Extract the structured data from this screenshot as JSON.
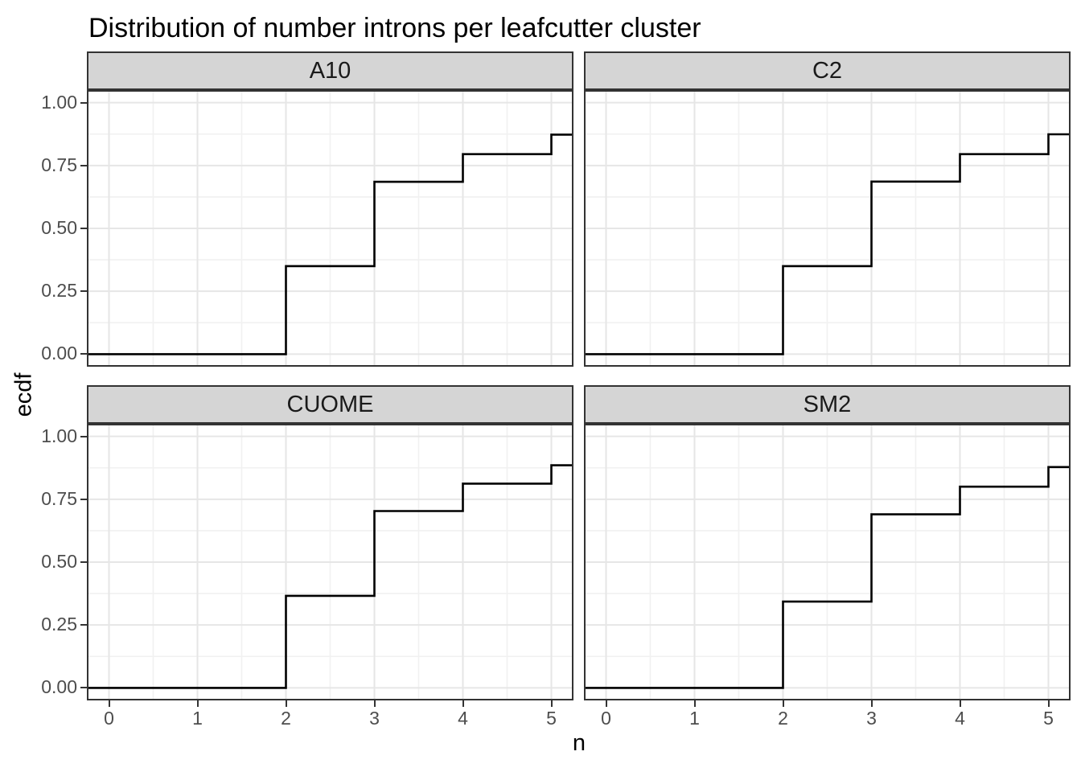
{
  "chart_data": {
    "type": "step",
    "title": "Distribution of number introns per leafcutter cluster",
    "xlabel": "n",
    "ylabel": "ecdf",
    "xlim": [
      -0.25,
      5.25
    ],
    "ylim": [
      -0.05,
      1.05
    ],
    "grid": true,
    "legend": "none",
    "x_axis": {
      "tick_values": [
        0,
        1,
        2,
        3,
        4,
        5
      ],
      "tick_labels": [
        "0",
        "1",
        "2",
        "3",
        "4",
        "5"
      ],
      "minor_values": [
        0.5,
        1.5,
        2.5,
        3.5,
        4.5
      ]
    },
    "y_axis": {
      "tick_values": [
        0,
        0.25,
        0.5,
        0.75,
        1
      ],
      "tick_labels": [
        "0.00",
        "0.25",
        "0.50",
        "0.75",
        "1.00"
      ],
      "minor_values": [
        0.125,
        0.375,
        0.625,
        0.875
      ]
    },
    "facets": [
      {
        "label": "A10",
        "row": 0,
        "col": 0,
        "baseline_y": 0,
        "steps": [
          {
            "x": 2,
            "y": 0.35
          },
          {
            "x": 3,
            "y": 0.685
          },
          {
            "x": 4,
            "y": 0.795
          },
          {
            "x": 5,
            "y": 0.873
          }
        ]
      },
      {
        "label": "C2",
        "row": 0,
        "col": 1,
        "baseline_y": 0,
        "steps": [
          {
            "x": 2,
            "y": 0.35
          },
          {
            "x": 3,
            "y": 0.686
          },
          {
            "x": 4,
            "y": 0.795
          },
          {
            "x": 5,
            "y": 0.874
          }
        ]
      },
      {
        "label": "CUOME",
        "row": 1,
        "col": 0,
        "baseline_y": 0,
        "steps": [
          {
            "x": 2,
            "y": 0.366
          },
          {
            "x": 3,
            "y": 0.703
          },
          {
            "x": 4,
            "y": 0.812
          },
          {
            "x": 5,
            "y": 0.885
          }
        ]
      },
      {
        "label": "SM2",
        "row": 1,
        "col": 1,
        "baseline_y": 0,
        "steps": [
          {
            "x": 2,
            "y": 0.343
          },
          {
            "x": 3,
            "y": 0.69
          },
          {
            "x": 4,
            "y": 0.8
          },
          {
            "x": 5,
            "y": 0.878
          }
        ]
      }
    ]
  },
  "colors": {
    "background": "#FFFFFF",
    "panel_background": "#FFFFFF",
    "panel_border": "#333333",
    "grid_major": "#E6E6E6",
    "grid_minor": "#F1F1F1",
    "step_line": "#000000",
    "strip_fill": "#D5D5D5",
    "strip_text": "#1A1A1A",
    "axis_text": "#4D4D4D",
    "tick_mark": "#333333",
    "title_text": "#000000"
  }
}
